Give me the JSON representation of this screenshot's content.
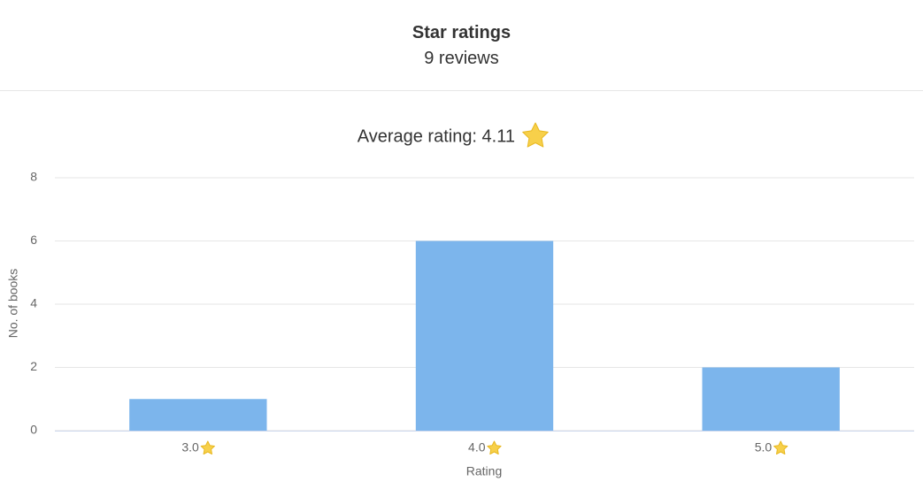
{
  "header": {
    "title": "Star ratings",
    "subtitle": "9 reviews"
  },
  "chart_data": {
    "type": "bar",
    "title": "Average rating: 4.11",
    "categories": [
      "3.0",
      "4.0",
      "5.0"
    ],
    "values": [
      1,
      6,
      2
    ],
    "color": "#7cb5ec",
    "x_label": "Rating",
    "y_label": "No. of books",
    "ylim": [
      0,
      8
    ],
    "yticks": [
      0,
      2,
      4,
      6,
      8
    ],
    "grid": true
  }
}
